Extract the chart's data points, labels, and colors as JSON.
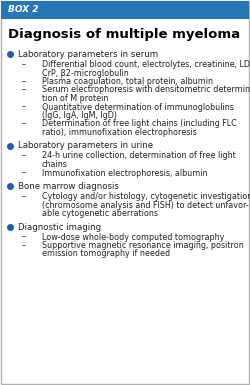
{
  "box_label": "BOX 2",
  "title": "Diagnosis of multiple myeloma",
  "header_bg": "#2577b5",
  "header_text_color": "#ffffff",
  "box_bg": "#ffffff",
  "border_color": "#b0b0b0",
  "bullet_color": "#1a5fa8",
  "title_color": "#000000",
  "text_color": "#222222",
  "sections": [
    {
      "bullet": "Laboratory parameters in serum",
      "items": [
        [
          "Differential blood count, electrolytes, creatinine, LDH,",
          "CrP, β2-microglobulin"
        ],
        [
          "Plasma coagulation, total protein, albumin"
        ],
        [
          "Serum electrophoresis with densitometric determina-",
          "tion of M protein"
        ],
        [
          "Quantitative determination of immunoglobulins",
          "(IgG, IgA, IgM, IgD)"
        ],
        [
          "Determination of free light chains (including FLC",
          "ratio), immunofixation electrophoresis"
        ]
      ]
    },
    {
      "bullet": "Laboratory parameters in urine",
      "items": [
        [
          "24-h urine collection, determination of free light",
          "chains"
        ],
        [
          "Immunofixation electrophoresis, albumin"
        ]
      ]
    },
    {
      "bullet": "Bone marrow diagnosis",
      "items": [
        [
          "Cytology and/or histology, cytogenetic investigation",
          "(chromosome analysis and FISH) to detect unfavor-",
          "able cytogenetic aberrations"
        ]
      ]
    },
    {
      "bullet": "Diagnostic imaging",
      "items": [
        [
          "Low-dose whole-body computed tomography"
        ],
        [
          "Supportive magnetic resonance imaging, positron",
          "emission tomography if needed"
        ]
      ]
    }
  ]
}
